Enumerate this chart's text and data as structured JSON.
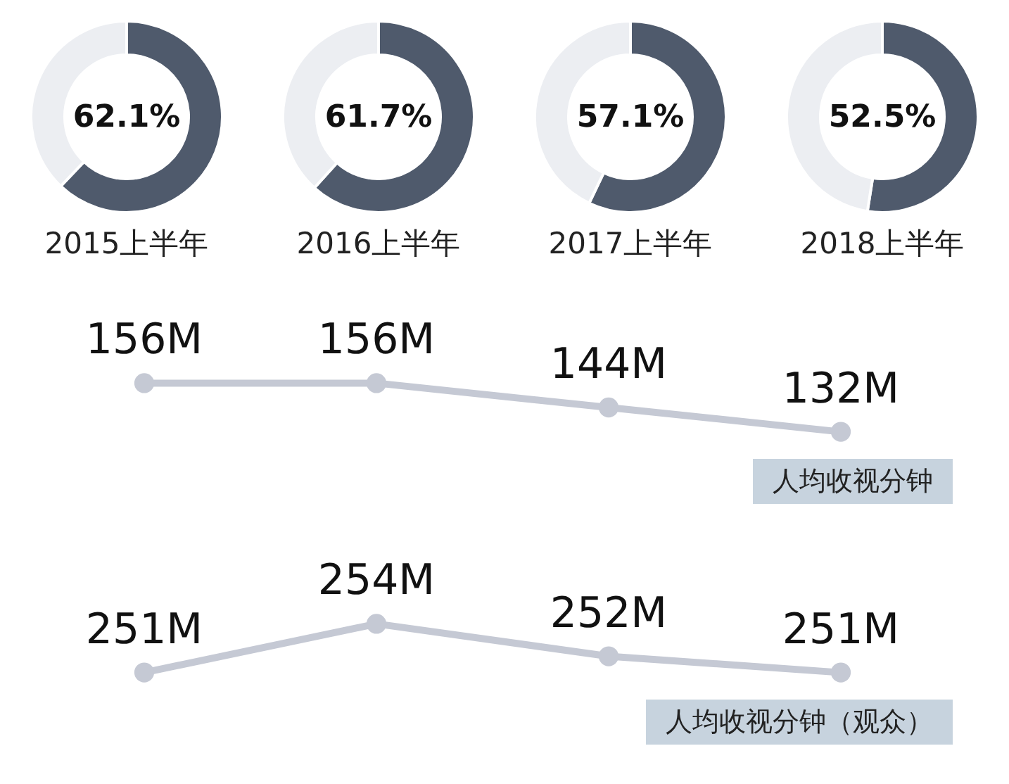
{
  "chart_data": [
    {
      "type": "donut",
      "title": "2015上半年",
      "categories": [
        null,
        null
      ],
      "values": [
        62.1,
        37.9
      ],
      "colors": [
        "#4f5a6c",
        "#eceef2"
      ],
      "value_labels": [
        "62.1%",
        null
      ]
    },
    {
      "type": "donut",
      "title": "2016上半年",
      "categories": [
        null,
        null
      ],
      "values": [
        61.7,
        38.3
      ],
      "colors": [
        "#4f5a6c",
        "#eceef2"
      ],
      "value_labels": [
        "61.7%",
        null
      ]
    },
    {
      "type": "donut",
      "title": "2017上半年",
      "categories": [
        null,
        null
      ],
      "values": [
        57.1,
        42.9
      ],
      "colors": [
        "#4f5a6c",
        "#eceef2"
      ],
      "value_labels": [
        "57.1%",
        null
      ]
    },
    {
      "type": "donut",
      "title": "2018上半年",
      "categories": [
        null,
        null
      ],
      "values": [
        52.5,
        47.5
      ],
      "colors": [
        "#4f5a6c",
        "#eceef2"
      ],
      "value_labels": [
        "52.5%",
        null
      ]
    },
    {
      "type": "line",
      "title": "人均收视分钟",
      "categories": [
        null,
        null,
        null,
        null
      ],
      "marker": "circle",
      "series": [
        {
          "color": "#c5c9d4",
          "values": [
            156,
            156,
            144,
            132
          ],
          "value_labels": [
            "156M",
            "156M",
            "144M",
            "132M"
          ]
        }
      ]
    },
    {
      "type": "line",
      "title": "人均收视分钟（观众）",
      "categories": [
        null,
        null,
        null,
        null
      ],
      "marker": "circle",
      "series": [
        {
          "color": "#c5c9d4",
          "values": [
            251,
            254,
            252,
            251
          ],
          "value_labels": [
            "251M",
            "254M",
            "252M",
            "251M"
          ]
        }
      ]
    }
  ]
}
